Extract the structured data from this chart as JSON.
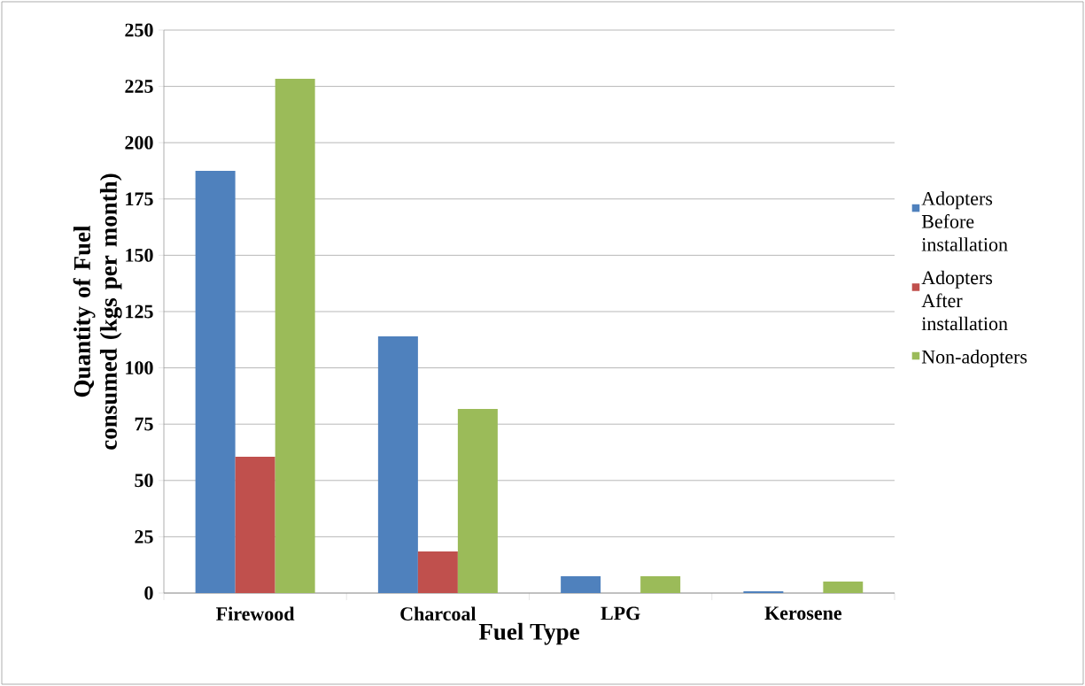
{
  "chart_data": {
    "type": "bar",
    "xlabel": "Fuel Type",
    "ylabel": "Quantity of Fuel  consumed (kgs per month)",
    "categories": [
      "Firewood",
      "Charcoal",
      "LPG",
      "Kerosene"
    ],
    "series": [
      {
        "name": "Adopters Before installation",
        "color": "#4f81bd",
        "values": [
          187.5,
          114,
          7.5,
          0.8
        ]
      },
      {
        "name": "Adopters After installation",
        "color": "#c0504d",
        "values": [
          60.5,
          18.5,
          0,
          0
        ]
      },
      {
        "name": "Non-adopters",
        "color": "#9bbb59",
        "values": [
          228.4,
          81.8,
          7.5,
          5.1
        ]
      }
    ],
    "ylim": [
      0,
      250
    ],
    "yticks": [
      0,
      25,
      50,
      75,
      100,
      125,
      150,
      175,
      200,
      225,
      250
    ],
    "grid": "y",
    "legend": "right"
  }
}
